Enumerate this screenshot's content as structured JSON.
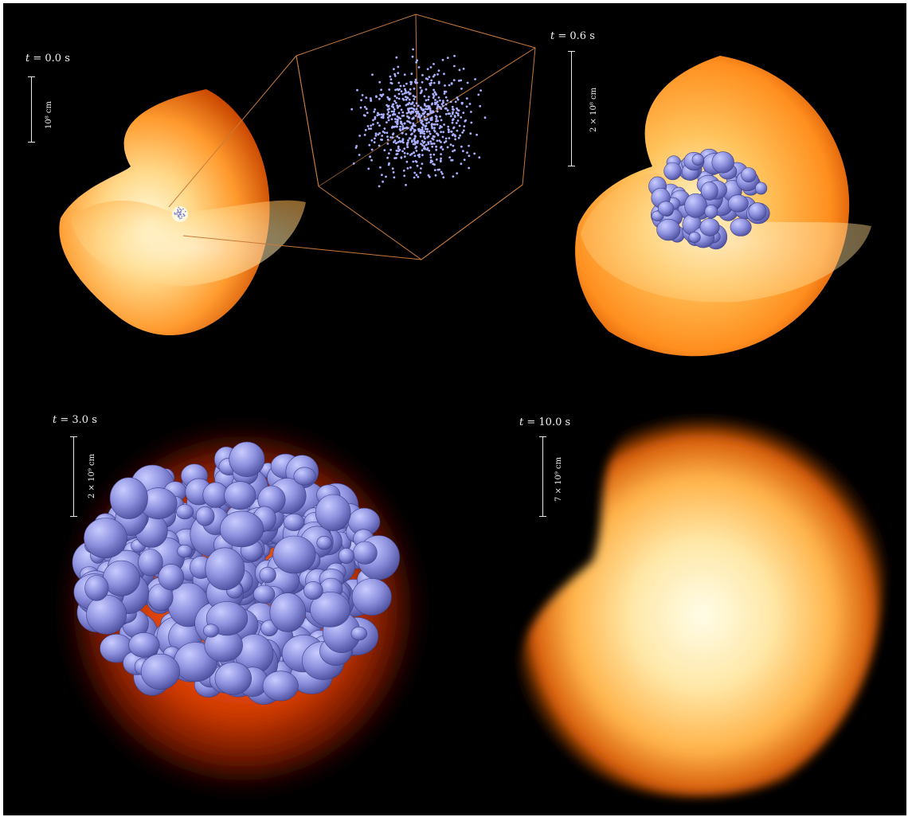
{
  "panels": [
    {
      "id": "p1",
      "time_prefix": "t",
      "time_value": "= 0.0 s",
      "scale_text": "10⁸ cm"
    },
    {
      "id": "p2",
      "time_prefix": "t",
      "time_value": "= 0.6 s",
      "scale_text": "2 × 10⁸ cm"
    },
    {
      "id": "p3",
      "time_prefix": "t",
      "time_value": "= 3.0 s",
      "scale_text": "2 × 10⁹ cm"
    },
    {
      "id": "p4",
      "time_prefix": "t",
      "time_value": "= 10.0 s",
      "scale_text": "7 × 10⁹ cm"
    }
  ],
  "colors": {
    "background": "#000000",
    "star_core": "#fff6c9",
    "star_mid": "#ffb347",
    "star_edge": "#d14a00",
    "bubbles": "#8f93e0",
    "zoom_box": "#c87a3a"
  }
}
